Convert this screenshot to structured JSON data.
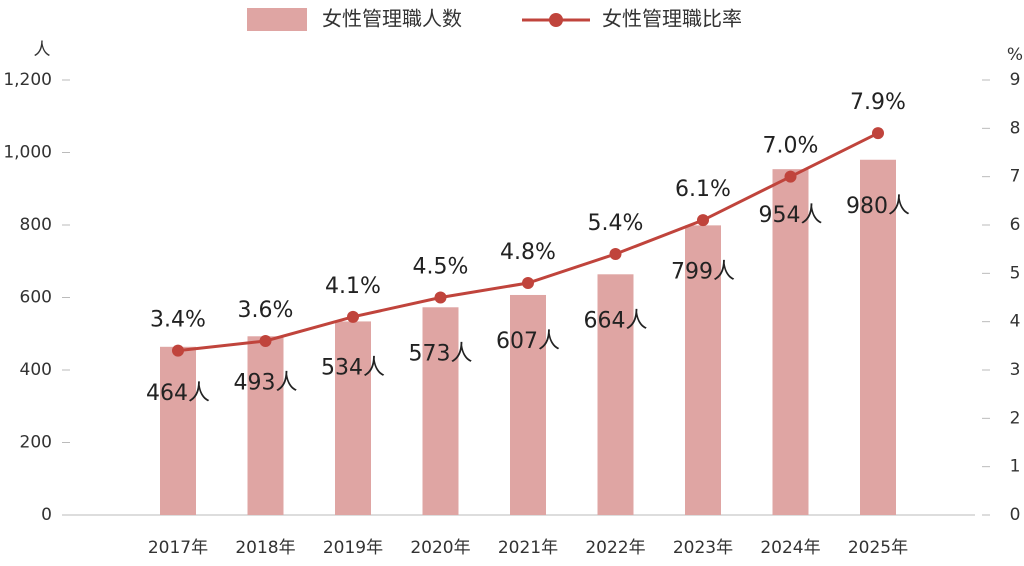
{
  "chart_data": {
    "type": "bar+line",
    "categories": [
      "2017年",
      "2018年",
      "2019年",
      "2020年",
      "2021年",
      "2022年",
      "2023年",
      "2024年",
      "2025年"
    ],
    "series": [
      {
        "name": "女性管理職人数",
        "type": "bar",
        "color": "#dfa5a3",
        "values": [
          464,
          493,
          534,
          573,
          607,
          664,
          799,
          954,
          980
        ],
        "value_labels": [
          "464人",
          "493人",
          "534人",
          "573人",
          "607人",
          "664人",
          "799人",
          "954人",
          "980人"
        ]
      },
      {
        "name": "女性管理職比率",
        "type": "line",
        "axis": "y2",
        "color": "#c0443c",
        "values": [
          3.4,
          3.6,
          4.1,
          4.5,
          4.8,
          5.4,
          6.1,
          7.0,
          7.9
        ],
        "value_labels": [
          "3.4%",
          "3.6%",
          "4.1%",
          "4.5%",
          "4.8%",
          "5.4%",
          "6.1%",
          "7.0%",
          "7.9%"
        ]
      }
    ],
    "y_label": "人",
    "y2_label": "%",
    "ylim": [
      0,
      1200
    ],
    "yticks": [
      0,
      200,
      400,
      600,
      800,
      {
        "value": 1000,
        "label": "1,000"
      },
      {
        "value": 1200,
        "label": "1,200"
      }
    ],
    "y2lim": [
      0,
      9
    ],
    "y2ticks": [
      0,
      1,
      2,
      3,
      4,
      5,
      6,
      7,
      8,
      9
    ],
    "legend": "top"
  }
}
